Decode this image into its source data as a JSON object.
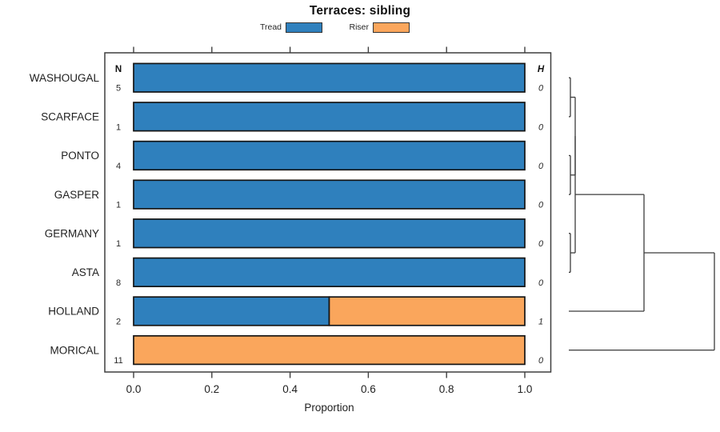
{
  "title": "Terraces: sibling",
  "legend": {
    "items": [
      {
        "label": "Tread",
        "color": "#2F80BD"
      },
      {
        "label": "Riser",
        "color": "#FAA65C"
      }
    ]
  },
  "columns": {
    "n_header": "N",
    "h_header": "H"
  },
  "chart_data": {
    "type": "bar",
    "orientation": "horizontal",
    "stacked": true,
    "title": "Terraces: sibling",
    "xlabel": "Proportion",
    "xlim": [
      0,
      1
    ],
    "grid": false,
    "legend_position": "top",
    "xticks": [
      "0.0",
      "0.2",
      "0.4",
      "0.6",
      "0.8",
      "1.0"
    ],
    "xtick_values": [
      0,
      0.2,
      0.4,
      0.6,
      0.8,
      1.0
    ],
    "categories": [
      "WASHOUGAL",
      "SCARFACE",
      "PONTO",
      "GASPER",
      "GERMANY",
      "ASTA",
      "HOLLAND",
      "MORICAL"
    ],
    "n_values": [
      5,
      1,
      4,
      1,
      1,
      8,
      2,
      11
    ],
    "h_values": [
      0,
      0,
      0,
      0,
      0,
      0,
      1,
      0
    ],
    "series": [
      {
        "name": "Tread",
        "color": "#2F80BD",
        "values": [
          1,
          1,
          1,
          1,
          1,
          1,
          0.5,
          0
        ]
      },
      {
        "name": "Riser",
        "color": "#FAA65C",
        "values": [
          0,
          0,
          0,
          0,
          0,
          0,
          0.5,
          1
        ]
      }
    ],
    "dendrogram": {
      "leaf_order": [
        "WASHOUGAL",
        "SCARFACE",
        "PONTO",
        "GASPER",
        "GERMANY",
        "ASTA",
        "HOLLAND",
        "MORICAL"
      ],
      "merges": [
        {
          "a": -1,
          "b": -2,
          "height": 0.011
        },
        {
          "a": -3,
          "b": -4,
          "height": 0.011
        },
        {
          "a": -5,
          "b": -6,
          "height": 0.011
        },
        {
          "a": 1,
          "b": 2,
          "height": 0.044
        },
        {
          "a": 4,
          "b": 3,
          "height": 0.044
        },
        {
          "a": 5,
          "b": -7,
          "height": 0.5165
        },
        {
          "a": 6,
          "b": -8,
          "height": 1.0
        }
      ]
    }
  }
}
